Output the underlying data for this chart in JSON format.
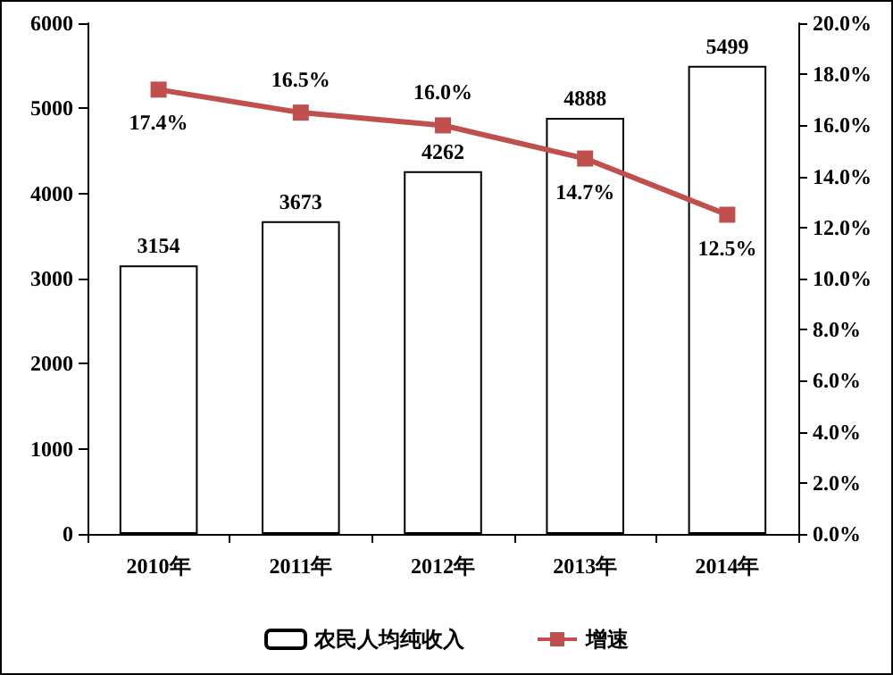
{
  "chart_data": {
    "type": "bar",
    "categories": [
      "2010年",
      "2011年",
      "2012年",
      "2013年",
      "2014年"
    ],
    "series": [
      {
        "name": "农民人均纯收入",
        "color": "#ffffff",
        "values": [
          3154,
          3673,
          4262,
          4888,
          5499
        ],
        "value_labels": [
          "3154",
          "3673",
          "4262",
          "4888",
          "5499"
        ]
      },
      {
        "name": "增速",
        "type": "line",
        "axis": "y2",
        "color": "#c0504d",
        "values": [
          17.4,
          16.5,
          16.0,
          14.7,
          12.5
        ],
        "value_labels": [
          "17.4%",
          "16.5%",
          "16.0%",
          "14.7%",
          "12.5%"
        ]
      }
    ],
    "ylim": [
      0,
      6000
    ],
    "yticks": [
      0,
      1000,
      2000,
      3000,
      4000,
      5000,
      6000
    ],
    "y2lim": [
      0,
      20
    ],
    "y2ticks": [
      {
        "value": 0,
        "label": "0.0%"
      },
      {
        "value": 2,
        "label": "2.0%"
      },
      {
        "value": 4,
        "label": "4.0%"
      },
      {
        "value": 6,
        "label": "6.0%"
      },
      {
        "value": 8,
        "label": "8.0%"
      },
      {
        "value": 10,
        "label": "10.0%"
      },
      {
        "value": 12,
        "label": "12.0%"
      },
      {
        "value": 14,
        "label": "14.0%"
      },
      {
        "value": 16,
        "label": "16.0%"
      },
      {
        "value": 18,
        "label": "18.0%"
      },
      {
        "value": 20,
        "label": "20.0%"
      }
    ],
    "marker": "square",
    "grid": false,
    "legend": "bottom"
  }
}
